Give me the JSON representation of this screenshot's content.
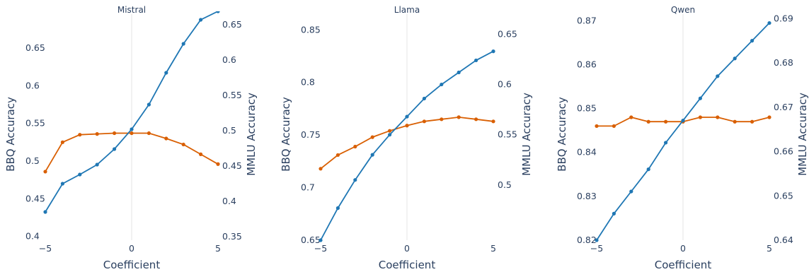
{
  "colors": {
    "bbq": "#d95f02",
    "mmlu": "#1f77b4",
    "zeroline": "#e5e5e5",
    "text": "#2a3f5f"
  },
  "chart_data": [
    {
      "type": "line",
      "title": "Mistral",
      "xlabel": "Coefficient",
      "ylabel_left": "BBQ Accuracy",
      "ylabel_right": "MMLU Accuracy",
      "xlim": [
        -5,
        5
      ],
      "x_ticks": [
        "−5",
        "0",
        "5"
      ],
      "y_left_lim": [
        0.395,
        0.695
      ],
      "y_left_ticks": [
        "0.4",
        "0.45",
        "0.5",
        "0.55",
        "0.6",
        "0.65"
      ],
      "y_right_lim": [
        0.345,
        0.665
      ],
      "y_right_ticks": [
        "0.35",
        "0.4",
        "0.45",
        "0.5",
        "0.55",
        "0.6",
        "0.65"
      ],
      "x": [
        -5,
        -4,
        -3,
        -2,
        -1,
        0,
        1,
        2,
        3,
        4,
        5
      ],
      "series": [
        {
          "axis": "left",
          "color": "#d95f02",
          "values": [
            0.486,
            0.525,
            0.535,
            0.536,
            0.537,
            0.537,
            0.537,
            0.53,
            0.522,
            0.509,
            0.496
          ]
        },
        {
          "axis": "right",
          "color": "#1f77b4",
          "values": [
            0.385,
            0.425,
            0.438,
            0.452,
            0.474,
            0.502,
            0.537,
            0.582,
            0.623,
            0.657,
            0.669
          ]
        }
      ]
    },
    {
      "type": "line",
      "title": "Llama",
      "xlabel": "Coefficient",
      "ylabel_left": "BBQ Accuracy",
      "ylabel_right": "MMLU Accuracy",
      "xlim": [
        -5,
        5
      ],
      "x_ticks": [
        "−5",
        "0",
        "5"
      ],
      "y_left_lim": [
        0.65,
        0.865
      ],
      "y_left_ticks": [
        "0.65",
        "0.7",
        "0.75",
        "0.8",
        "0.85"
      ],
      "y_right_lim": [
        0.445,
        0.67
      ],
      "y_right_ticks": [
        "0.5",
        "0.55",
        "0.6",
        "0.65"
      ],
      "x": [
        -5,
        -4,
        -3,
        -2,
        -1,
        0,
        1,
        2,
        3,
        4,
        5
      ],
      "series": [
        {
          "axis": "left",
          "color": "#d95f02",
          "values": [
            0.718,
            0.731,
            0.739,
            0.748,
            0.754,
            0.759,
            0.763,
            0.765,
            0.767,
            0.765,
            0.763
          ]
        },
        {
          "axis": "right",
          "color": "#1f77b4",
          "values": [
            0.445,
            0.477,
            0.505,
            0.53,
            0.55,
            0.568,
            0.586,
            0.6,
            0.612,
            0.624,
            0.633
          ]
        }
      ]
    },
    {
      "type": "line",
      "title": "Qwen",
      "xlabel": "Coefficient",
      "ylabel_left": "BBQ Accuracy",
      "ylabel_right": "MMLU Accuracy",
      "xlim": [
        -5,
        5
      ],
      "x_ticks": [
        "−5",
        "0",
        "5"
      ],
      "y_left_lim": [
        0.82,
        0.8715
      ],
      "y_left_ticks": [
        "0.82",
        "0.83",
        "0.84",
        "0.85",
        "0.86",
        "0.87"
      ],
      "y_right_lim": [
        0.64,
        0.691
      ],
      "y_right_ticks": [
        "0.64",
        "0.65",
        "0.66",
        "0.67",
        "0.68",
        "0.69"
      ],
      "x": [
        -5,
        -4,
        -3,
        -2,
        -1,
        0,
        1,
        2,
        3,
        4,
        5
      ],
      "series": [
        {
          "axis": "left",
          "color": "#d95f02",
          "values": [
            0.846,
            0.846,
            0.848,
            0.847,
            0.847,
            0.847,
            0.848,
            0.848,
            0.847,
            0.847,
            0.848
          ]
        },
        {
          "axis": "right",
          "color": "#1f77b4",
          "values": [
            0.64,
            0.646,
            0.651,
            0.656,
            0.662,
            0.667,
            0.672,
            0.677,
            0.681,
            0.685,
            0.689
          ]
        }
      ]
    }
  ]
}
